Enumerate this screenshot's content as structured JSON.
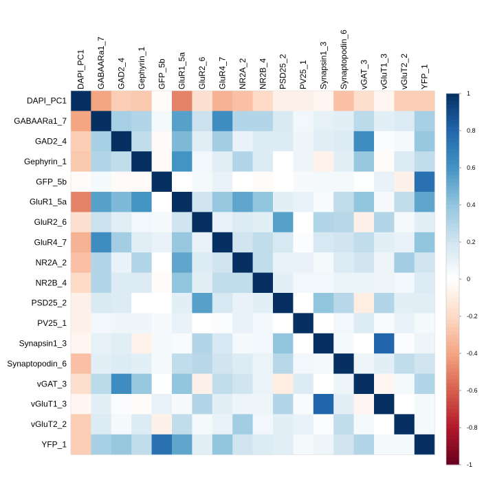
{
  "chart_data": {
    "type": "heatmap",
    "variables": [
      "DAPI_PC1",
      "GABAARa1_7",
      "GAD2_4",
      "Gephyrin_1",
      "GFP_5b",
      "GluR1_5a",
      "GluR2_6",
      "GluR4_7",
      "NR2A_2",
      "NR2B_4",
      "PSD25_2",
      "PV25_1",
      "Synapsin1_3",
      "Synaptopodin_6",
      "vGAT_3",
      "vGluT1_3",
      "vGluT2_2",
      "YFP_1"
    ],
    "matrix": [
      [
        1.0,
        -0.4,
        -0.25,
        -0.27,
        -0.02,
        -0.5,
        -0.17,
        -0.35,
        -0.3,
        -0.2,
        -0.08,
        -0.08,
        -0.05,
        -0.3,
        -0.18,
        -0.05,
        -0.25,
        -0.25
      ],
      [
        -0.4,
        1.0,
        0.33,
        0.3,
        0.05,
        0.55,
        0.22,
        0.63,
        0.3,
        0.3,
        0.16,
        0.06,
        0.11,
        0.12,
        0.27,
        0.12,
        0.15,
        0.33
      ],
      [
        -0.25,
        0.33,
        1.0,
        0.25,
        -0.03,
        0.45,
        0.13,
        0.35,
        0.1,
        0.15,
        0.15,
        0.07,
        0.13,
        0.15,
        0.63,
        0.02,
        0.05,
        0.38
      ],
      [
        -0.27,
        0.3,
        0.25,
        1.0,
        -0.03,
        0.6,
        0.06,
        0.13,
        0.3,
        0.15,
        0.0,
        0.07,
        -0.07,
        0.12,
        0.38,
        -0.02,
        0.15,
        0.25
      ],
      [
        -0.02,
        0.05,
        -0.03,
        -0.03,
        1.0,
        0.0,
        0.05,
        0.1,
        0.0,
        -0.02,
        0.0,
        0.04,
        0.05,
        0.05,
        0.01,
        0.1,
        -0.08,
        0.75
      ],
      [
        -0.5,
        0.55,
        0.45,
        0.6,
        0.0,
        1.0,
        0.2,
        0.38,
        0.53,
        0.4,
        0.12,
        0.1,
        0.03,
        0.25,
        0.4,
        0.04,
        0.25,
        0.53
      ],
      [
        -0.17,
        0.22,
        0.13,
        0.06,
        0.05,
        0.2,
        1.0,
        0.1,
        0.15,
        0.12,
        0.55,
        0.0,
        0.3,
        0.28,
        -0.08,
        0.3,
        0.05,
        0.12
      ],
      [
        -0.35,
        0.63,
        0.35,
        0.13,
        0.1,
        0.38,
        0.1,
        1.0,
        0.2,
        0.25,
        0.18,
        0.02,
        0.18,
        0.2,
        0.25,
        0.12,
        0.1,
        0.4
      ],
      [
        -0.3,
        0.3,
        0.1,
        0.3,
        0.0,
        0.53,
        0.15,
        0.2,
        1.0,
        0.25,
        0.1,
        0.1,
        0.05,
        0.15,
        0.2,
        0.08,
        0.35,
        0.2
      ],
      [
        -0.2,
        0.3,
        0.15,
        0.15,
        -0.02,
        0.4,
        0.12,
        0.25,
        0.25,
        1.0,
        0.12,
        0.06,
        0.06,
        0.09,
        0.09,
        0.08,
        0.06,
        0.15
      ],
      [
        -0.08,
        0.16,
        0.15,
        0.0,
        0.0,
        0.12,
        0.55,
        0.18,
        0.1,
        0.12,
        1.0,
        0.0,
        0.4,
        0.28,
        -0.1,
        0.3,
        0.12,
        0.13
      ],
      [
        -0.08,
        0.06,
        0.07,
        0.07,
        0.04,
        0.1,
        0.0,
        0.02,
        0.1,
        0.06,
        0.0,
        1.0,
        0.0,
        0.06,
        0.15,
        0.03,
        0.1,
        0.05
      ],
      [
        -0.05,
        0.11,
        0.13,
        -0.07,
        0.05,
        0.03,
        0.3,
        0.18,
        0.05,
        0.06,
        0.4,
        0.0,
        1.0,
        0.05,
        0.0,
        0.8,
        0.02,
        0.08
      ],
      [
        -0.3,
        0.12,
        0.15,
        0.12,
        0.05,
        0.25,
        0.28,
        0.2,
        0.15,
        0.09,
        0.28,
        0.06,
        0.05,
        1.0,
        0.08,
        0.12,
        0.25,
        0.2
      ],
      [
        -0.18,
        0.27,
        0.63,
        0.38,
        0.01,
        0.4,
        -0.08,
        0.25,
        0.2,
        0.09,
        -0.1,
        0.15,
        0.0,
        0.08,
        1.0,
        -0.05,
        0.05,
        0.3
      ],
      [
        -0.05,
        0.12,
        0.02,
        -0.02,
        0.1,
        0.04,
        0.3,
        0.12,
        0.08,
        0.08,
        0.3,
        0.03,
        0.8,
        0.12,
        -0.05,
        1.0,
        0.0,
        0.05
      ],
      [
        -0.25,
        0.15,
        0.05,
        0.15,
        -0.08,
        0.25,
        0.05,
        0.1,
        0.35,
        0.06,
        0.12,
        0.1,
        0.02,
        0.25,
        0.05,
        0.0,
        1.0,
        0.05
      ],
      [
        -0.25,
        0.33,
        0.38,
        0.25,
        0.75,
        0.53,
        0.12,
        0.4,
        0.2,
        0.15,
        0.13,
        0.05,
        0.08,
        0.2,
        0.3,
        0.05,
        0.05,
        1.0
      ]
    ],
    "colorbar_ticks": [
      "1",
      "0.8",
      "0.6",
      "0.4",
      "0.2",
      "0",
      "-0.2",
      "-0.4",
      "-0.6",
      "-0.8",
      "-1"
    ],
    "color_scale": {
      "low": "#67001f",
      "mid": "#ffffff",
      "high": "#053061"
    },
    "range": [
      -1,
      1
    ],
    "title": "",
    "xlabel": "",
    "ylabel": ""
  }
}
